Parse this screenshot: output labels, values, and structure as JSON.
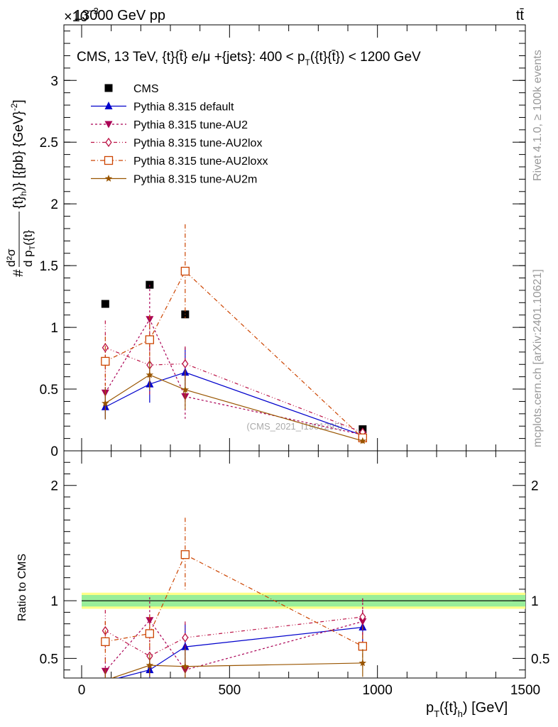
{
  "header": {
    "energy": "13000 GeV pp",
    "process": "tt̄",
    "scale_prefix": "×10",
    "scale_exp": "−3"
  },
  "side_text": {
    "rivet": "Rivet 4.1.0, ≥ 100k events",
    "mcplots": "mcplots.cern.ch [arXiv:2401.10621]"
  },
  "chart_data": [
    {
      "type": "line",
      "title": "CMS, 13 TeV, {t}{t̄} e/μ +{jets}: 400 < p_T({t}{t̄}) < 1200 GeV",
      "title_main": "CMS, 13 TeV, {t}{t̄} e/μ +{jets}: 400 <  p",
      "title_sub": "T",
      "title_end": "({t}{t̄}) < 1200 GeV",
      "ylabel": "#frac{d^2σ}{d p_T({t}_h)} d p_T({t}{t̄})} [{pb} {GeV}^{-2}]",
      "ylabel_parts": {
        "hash": "#",
        "num": "d²σ",
        "den": "d p",
        "den_sub": "T",
        "den_end": "({t}",
        "rest": "{t}",
        "rest_sub": "h",
        "rest_end": ")} [{pb} {GeV}",
        "exp": "-2",
        "close": "]"
      },
      "watermark": "(CMS_2021_I1901295)",
      "x_range": [
        -60,
        1500
      ],
      "ylim": [
        0,
        3.45
      ],
      "y_ticks": [
        "0",
        "0.5",
        "1",
        "1.5",
        "2",
        "2.5",
        "3"
      ],
      "y_tick_values": [
        0,
        0.5,
        1,
        1.5,
        2,
        2.5,
        3
      ],
      "x": [
        80,
        230,
        350,
        950
      ],
      "series": [
        {
          "name": "CMS",
          "color": "#000000",
          "marker": "square",
          "values": [
            1.19,
            1.345,
            1.105,
            0.175
          ]
        },
        {
          "name": "Pythia 8.315 default",
          "color": "#0000cc",
          "marker": "triangle-up",
          "dash": "",
          "values": [
            0.355,
            0.54,
            0.635,
            0.125
          ],
          "err": [
            0.1,
            0.15,
            0.2,
            0.02
          ]
        },
        {
          "name": "Pythia 8.315 tune-AU2",
          "color": "#aa0055",
          "marker": "triangle-down",
          "dash": "3,3",
          "values": [
            0.47,
            1.065,
            0.44,
            0.13
          ],
          "err": [
            0.15,
            0.28,
            0.18,
            0.02
          ]
        },
        {
          "name": "Pythia 8.315 tune-AU2lox",
          "color": "#bb1144",
          "marker": "diamond-open",
          "dash": "5,3,1,3,1,3",
          "values": [
            0.835,
            0.695,
            0.705,
            0.15
          ],
          "err": [
            0.22,
            0.25,
            0.14,
            0.02
          ]
        },
        {
          "name": "Pythia 8.315 tune-AU2loxx",
          "color": "#cc4400",
          "marker": "square-open",
          "dash": "6,3,1,3",
          "values": [
            0.725,
            0.9,
            1.455,
            0.105
          ],
          "err": [
            0.2,
            0.2,
            0.38,
            0.02
          ]
        },
        {
          "name": "Pythia 8.315 tune-AU2m",
          "color": "#995500",
          "marker": "star",
          "dash": "",
          "values": [
            0.385,
            0.615,
            0.495,
            0.08
          ],
          "err": [
            0.13,
            0.12,
            0.16,
            0.02
          ]
        }
      ]
    },
    {
      "type": "line",
      "title": "Ratio to CMS",
      "ylabel": "Ratio to CMS",
      "xlabel": "p_T({t}_h) [GeV]",
      "xlabel_parts": {
        "main": "p",
        "sub": "T",
        "mid": "({t}",
        "sub2": "h",
        "end": ") [GeV]"
      },
      "x_range": [
        -60,
        1500
      ],
      "ylim": [
        0.33,
        2.3
      ],
      "x_ticks": [
        "0",
        "500",
        "1000",
        "1500"
      ],
      "x_tick_values": [
        0,
        500,
        1000,
        1500
      ],
      "y_ticks": [
        "0.5",
        "1",
        "2"
      ],
      "y_tick_values": [
        0.5,
        1,
        2
      ],
      "band": {
        "x_range": [
          0,
          1500
        ],
        "inner": [
          0.95,
          1.05
        ],
        "outer": [
          0.93,
          1.07
        ]
      },
      "x": [
        80,
        230,
        350,
        950
      ],
      "series": [
        {
          "name": "Pythia 8.315 default",
          "values": [
            0.3,
            0.4,
            0.6,
            0.77
          ],
          "err": [
            0.08,
            0.12,
            0.2,
            0.15
          ]
        },
        {
          "name": "Pythia 8.315 tune-AU2",
          "values": [
            0.39,
            0.83,
            0.4,
            0.82
          ],
          "err": [
            0.12,
            0.2,
            0.18,
            0.2
          ]
        },
        {
          "name": "Pythia 8.315 tune-AU2lox",
          "values": [
            0.74,
            0.52,
            0.68,
            0.86
          ],
          "err": [
            0.18,
            0.18,
            0.14,
            0.16
          ]
        },
        {
          "name": "Pythia 8.315 tune-AU2loxx",
          "values": [
            0.645,
            0.715,
            1.4,
            0.605
          ],
          "err": [
            0.18,
            0.16,
            0.32,
            0.18
          ]
        },
        {
          "name": "Pythia 8.315 tune-AU2m",
          "values": [
            0.31,
            0.44,
            0.43,
            0.46
          ],
          "err": [
            0.1,
            0.1,
            0.16,
            0.12
          ]
        }
      ]
    }
  ]
}
